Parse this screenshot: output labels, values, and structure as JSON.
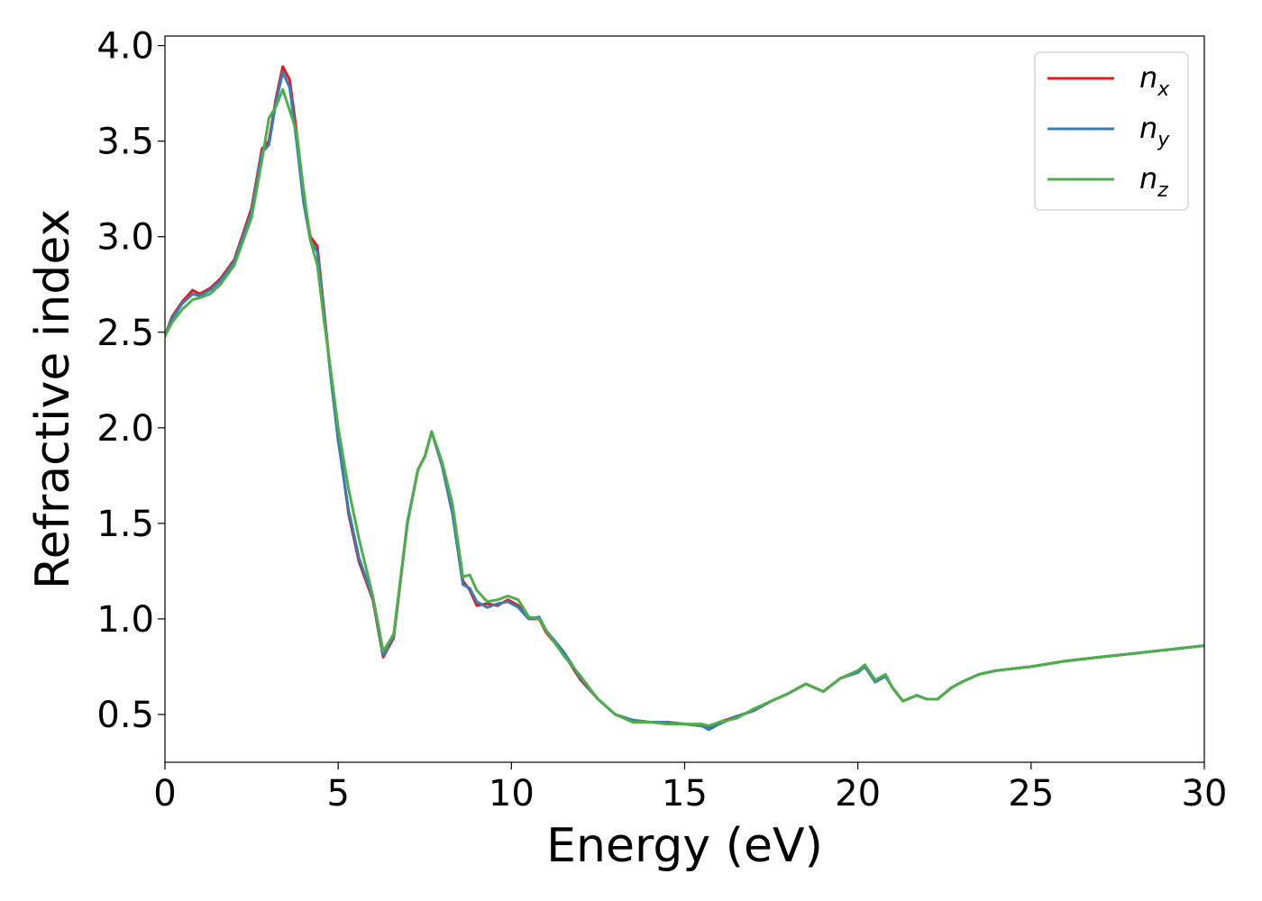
{
  "chart_data": {
    "type": "line",
    "title": "",
    "xlabel": "Energy (eV)",
    "ylabel": "Refractive index",
    "xlim": [
      0,
      30
    ],
    "ylim": [
      0.25,
      4.05
    ],
    "xticks": [
      0,
      5,
      10,
      15,
      20,
      25,
      30
    ],
    "xtick_labels": [
      "0",
      "5",
      "10",
      "15",
      "20",
      "25",
      "30"
    ],
    "yticks": [
      0.5,
      1.0,
      1.5,
      2.0,
      2.5,
      3.0,
      3.5,
      4.0
    ],
    "ytick_labels": [
      "0.5",
      "1.0",
      "1.5",
      "2.0",
      "2.5",
      "3.0",
      "3.5",
      "4.0"
    ],
    "grid": false,
    "legend": {
      "position": "top-right",
      "entries": [
        {
          "base": "n",
          "sub": "x"
        },
        {
          "base": "n",
          "sub": "y"
        },
        {
          "base": "n",
          "sub": "z"
        }
      ]
    },
    "series": [
      {
        "name": "n_x",
        "color": "#e41a1c",
        "x": [
          0,
          0.2,
          0.5,
          0.8,
          1.0,
          1.3,
          1.6,
          2.0,
          2.5,
          2.8,
          3.0,
          3.2,
          3.4,
          3.6,
          3.8,
          4.0,
          4.2,
          4.4,
          4.6,
          4.8,
          5.0,
          5.3,
          5.6,
          6.0,
          6.3,
          6.6,
          7.0,
          7.3,
          7.5,
          7.7,
          8.0,
          8.3,
          8.6,
          8.8,
          9.0,
          9.3,
          9.6,
          9.9,
          10.2,
          10.5,
          10.8,
          11.0,
          11.5,
          12.0,
          12.5,
          13.0,
          13.5,
          14.0,
          14.5,
          15.0,
          15.5,
          15.7,
          16.0,
          16.5,
          17.0,
          17.5,
          18.0,
          18.5,
          19.0,
          19.5,
          20.0,
          20.2,
          20.5,
          20.8,
          21.0,
          21.3,
          21.7,
          22.0,
          22.3,
          22.7,
          23.0,
          23.5,
          24.0,
          25.0,
          26.0,
          27.0,
          28.0,
          29.0,
          30.0
        ],
        "y": [
          2.48,
          2.58,
          2.66,
          2.72,
          2.7,
          2.73,
          2.78,
          2.88,
          3.15,
          3.46,
          3.5,
          3.72,
          3.89,
          3.82,
          3.55,
          3.2,
          3.0,
          2.95,
          2.6,
          2.25,
          1.95,
          1.55,
          1.3,
          1.1,
          0.8,
          0.9,
          1.5,
          1.78,
          1.85,
          1.98,
          1.8,
          1.55,
          1.2,
          1.15,
          1.07,
          1.08,
          1.07,
          1.1,
          1.07,
          1.0,
          1.0,
          0.93,
          0.82,
          0.68,
          0.58,
          0.5,
          0.47,
          0.46,
          0.46,
          0.45,
          0.44,
          0.43,
          0.46,
          0.49,
          0.52,
          0.57,
          0.61,
          0.66,
          0.62,
          0.69,
          0.72,
          0.75,
          0.67,
          0.7,
          0.64,
          0.57,
          0.6,
          0.58,
          0.58,
          0.64,
          0.67,
          0.71,
          0.73,
          0.75,
          0.78,
          0.8,
          0.82,
          0.84,
          0.86
        ]
      },
      {
        "name": "n_y",
        "color": "#377eb8",
        "x": [
          0,
          0.2,
          0.5,
          0.8,
          1.0,
          1.3,
          1.6,
          2.0,
          2.5,
          2.8,
          3.0,
          3.2,
          3.4,
          3.6,
          3.8,
          4.0,
          4.2,
          4.4,
          4.6,
          4.8,
          5.0,
          5.3,
          5.6,
          6.0,
          6.3,
          6.6,
          7.0,
          7.3,
          7.5,
          7.7,
          8.0,
          8.3,
          8.6,
          8.8,
          9.0,
          9.3,
          9.6,
          9.9,
          10.2,
          10.5,
          10.8,
          11.0,
          11.5,
          12.0,
          12.5,
          13.0,
          13.5,
          14.0,
          14.5,
          15.0,
          15.5,
          15.7,
          16.0,
          16.5,
          17.0,
          17.5,
          18.0,
          18.5,
          19.0,
          19.5,
          20.0,
          20.2,
          20.5,
          20.8,
          21.0,
          21.3,
          21.7,
          22.0,
          22.3,
          22.7,
          23.0,
          23.5,
          24.0,
          25.0,
          26.0,
          27.0,
          28.0,
          29.0,
          30.0
        ],
        "y": [
          2.48,
          2.57,
          2.65,
          2.7,
          2.69,
          2.72,
          2.77,
          2.87,
          3.13,
          3.44,
          3.48,
          3.7,
          3.86,
          3.78,
          3.5,
          3.18,
          2.98,
          2.92,
          2.58,
          2.24,
          1.93,
          1.57,
          1.32,
          1.11,
          0.81,
          0.91,
          1.51,
          1.78,
          1.85,
          1.98,
          1.8,
          1.55,
          1.18,
          1.16,
          1.09,
          1.06,
          1.08,
          1.09,
          1.06,
          1.0,
          1.01,
          0.94,
          0.83,
          0.69,
          0.58,
          0.5,
          0.47,
          0.46,
          0.46,
          0.45,
          0.44,
          0.42,
          0.45,
          0.49,
          0.52,
          0.57,
          0.61,
          0.66,
          0.62,
          0.69,
          0.72,
          0.75,
          0.67,
          0.7,
          0.64,
          0.57,
          0.6,
          0.58,
          0.58,
          0.64,
          0.67,
          0.71,
          0.73,
          0.75,
          0.78,
          0.8,
          0.82,
          0.84,
          0.86
        ]
      },
      {
        "name": "n_z",
        "color": "#4daf4a",
        "x": [
          0,
          0.2,
          0.5,
          0.8,
          1.0,
          1.3,
          1.6,
          2.0,
          2.5,
          2.8,
          3.0,
          3.2,
          3.4,
          3.6,
          3.8,
          4.0,
          4.2,
          4.4,
          4.6,
          4.8,
          5.0,
          5.3,
          5.6,
          6.0,
          6.3,
          6.6,
          7.0,
          7.3,
          7.5,
          7.7,
          8.0,
          8.3,
          8.6,
          8.8,
          9.0,
          9.3,
          9.6,
          9.9,
          10.2,
          10.5,
          10.8,
          11.0,
          11.5,
          12.0,
          12.5,
          13.0,
          13.5,
          14.0,
          14.5,
          15.0,
          15.5,
          15.7,
          16.0,
          16.5,
          17.0,
          17.5,
          18.0,
          18.5,
          19.0,
          19.5,
          20.0,
          20.2,
          20.5,
          20.8,
          21.0,
          21.3,
          21.7,
          22.0,
          22.3,
          22.7,
          23.0,
          23.5,
          24.0,
          25.0,
          26.0,
          27.0,
          28.0,
          29.0,
          30.0
        ],
        "y": [
          2.48,
          2.55,
          2.62,
          2.67,
          2.68,
          2.7,
          2.75,
          2.85,
          3.1,
          3.4,
          3.62,
          3.68,
          3.77,
          3.66,
          3.55,
          3.25,
          2.98,
          2.85,
          2.55,
          2.28,
          2.0,
          1.68,
          1.42,
          1.12,
          0.83,
          0.92,
          1.5,
          1.78,
          1.85,
          1.98,
          1.82,
          1.6,
          1.22,
          1.23,
          1.15,
          1.09,
          1.1,
          1.12,
          1.1,
          1.01,
          1.0,
          0.94,
          0.81,
          0.7,
          0.58,
          0.5,
          0.46,
          0.46,
          0.45,
          0.45,
          0.45,
          0.44,
          0.46,
          0.48,
          0.53,
          0.57,
          0.61,
          0.66,
          0.62,
          0.69,
          0.73,
          0.76,
          0.68,
          0.71,
          0.64,
          0.57,
          0.6,
          0.58,
          0.58,
          0.64,
          0.67,
          0.71,
          0.73,
          0.75,
          0.78,
          0.8,
          0.82,
          0.84,
          0.86
        ]
      }
    ]
  }
}
